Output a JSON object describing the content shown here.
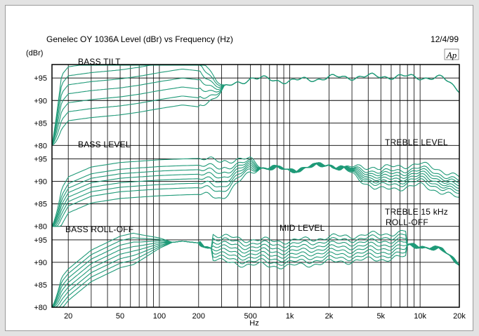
{
  "header": {
    "title": "Genelec OY 1036A Level (dBr) vs Frequency (Hz)",
    "date": "12/4/99",
    "logo": "Ap"
  },
  "axes": {
    "y_unit": "(dBr)",
    "x_title": "Hz"
  },
  "annotations": {
    "bass_tilt": "BASS TILT",
    "bass_level": "BASS LEVEL",
    "treble_level": "TREBLE LEVEL",
    "bass_rolloff": "BASS ROLL-OFF",
    "mid_level": "MID LEVEL",
    "treble_15k_line1": "TREBLE 15 kHz",
    "treble_15k_line2": "ROLL-OFF"
  },
  "colors": {
    "curve": "#1f9a78",
    "grid": "#000000",
    "background": "#e3e3e3"
  },
  "chart_data": {
    "type": "line",
    "title": "Genelec OY 1036A Level (dBr) vs Frequency (Hz)",
    "xlabel": "Hz",
    "ylabel": "(dBr)",
    "x_scale": "log",
    "xlim": [
      15,
      20000
    ],
    "ylim": [
      80,
      98
    ],
    "x_tick_labels": [
      "20",
      "50",
      "100",
      "200",
      "500",
      "1k",
      "2k",
      "5k",
      "10k",
      "20k"
    ],
    "x_tick_values": [
      20,
      50,
      100,
      200,
      500,
      1000,
      2000,
      5000,
      10000,
      20000
    ],
    "y_tick_labels": [
      "+80",
      "+85",
      "+90",
      "+95"
    ],
    "y_tick_values": [
      80,
      85,
      90,
      95
    ],
    "grid": true,
    "panels": [
      {
        "annotation": "BASS TILT",
        "y_tick_labels": [
          "+80",
          "+85",
          "+90",
          "+95"
        ],
        "offsets": [
          6,
          4,
          2,
          0,
          -2,
          -4,
          -6
        ],
        "x": [
          15,
          20,
          30,
          50,
          70,
          100,
          150,
          200,
          300,
          500,
          1000,
          2000,
          5000,
          10000,
          15000,
          20000
        ],
        "base": [
          87,
          91.5,
          92.2,
          92.8,
          93.4,
          94.2,
          95,
          94.6,
          92.5,
          95,
          94.3,
          95.1,
          95.4,
          95.2,
          94.9,
          92.5
        ]
      },
      {
        "annotation": "BASS LEVEL / TREBLE LEVEL",
        "y_tick_labels": [
          "+80",
          "+85",
          "+90",
          "+95"
        ],
        "offsets": [
          4,
          2.5,
          1.5,
          0.5,
          -0.5,
          -1.5,
          -2.5,
          -4
        ],
        "x": [
          15,
          20,
          30,
          50,
          70,
          100,
          150,
          200,
          300,
          500,
          1000,
          2000,
          5000,
          10000,
          15000,
          20000
        ],
        "base": [
          80.5,
          87,
          89.2,
          90.2,
          90.5,
          90.8,
          91,
          91.1,
          90.4,
          93.5,
          92.5,
          93.8,
          90.5,
          91.5,
          90,
          88.5
        ]
      },
      {
        "annotation": "BASS ROLL-OFF / MID LEVEL / TREBLE 15 kHz ROLL-OFF",
        "y_tick_labels": [
          "+80",
          "+85",
          "+90",
          "+95"
        ],
        "offsets": [
          4,
          3,
          2,
          1,
          0,
          -1,
          -2,
          -3
        ],
        "x": [
          15,
          20,
          30,
          50,
          70,
          100,
          150,
          200,
          300,
          500,
          1000,
          2000,
          5000,
          10000,
          15000,
          20000
        ],
        "base": [
          80,
          84.5,
          88.7,
          91.8,
          92.8,
          94.1,
          94.7,
          94.3,
          92.5,
          91.8,
          91.5,
          92.4,
          93.1,
          93.8,
          92.5,
          90
        ]
      }
    ]
  }
}
